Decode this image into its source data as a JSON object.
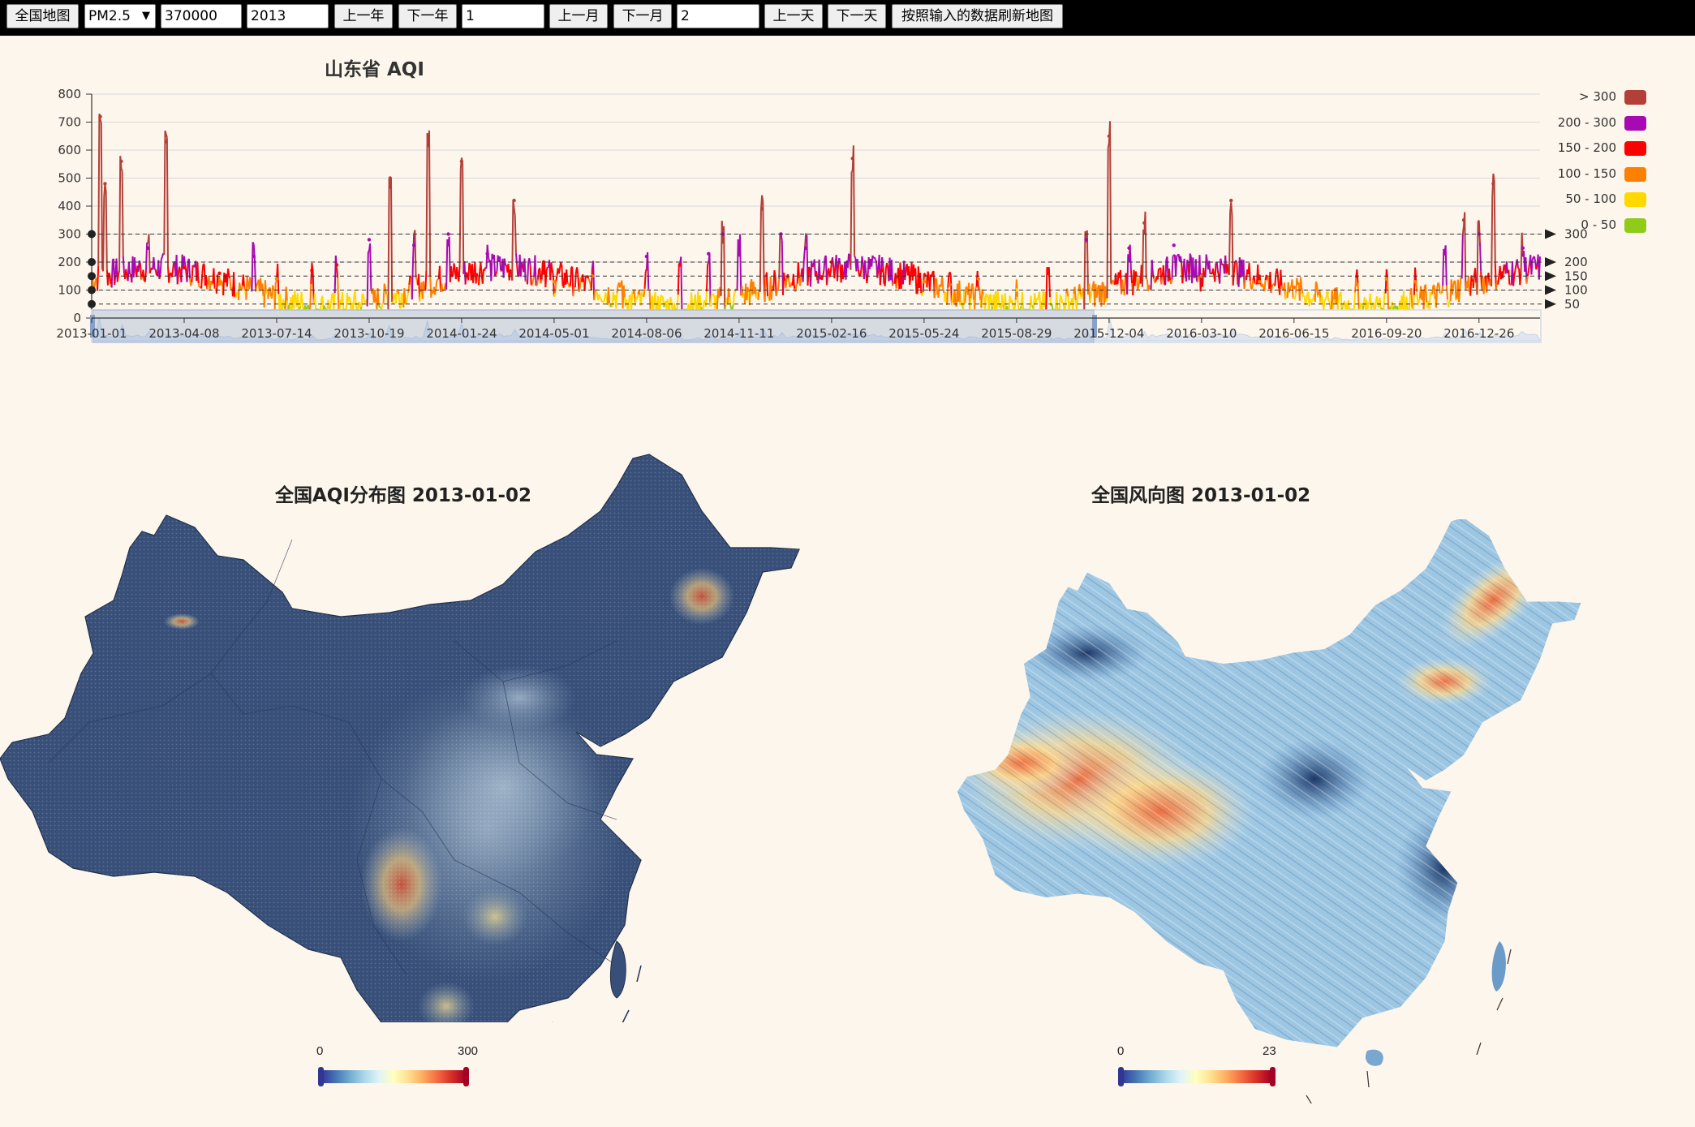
{
  "toolbar": {
    "national_map_label": "全国地图",
    "pollutant_select_value": "PM2.5",
    "region_code_value": "370000",
    "year_value": "2013",
    "prev_year_label": "上一年",
    "next_year_label": "下一年",
    "month_value": "1",
    "prev_month_label": "上一月",
    "next_month_label": "下一月",
    "day_value": "2",
    "prev_day_label": "上一天",
    "next_day_label": "下一天",
    "refresh_label": "按照输入的数据刷新地图"
  },
  "aqi_chart": {
    "title": "山东省 AQI",
    "colors": {
      "gt300": "#b34038",
      "r200_300": "#a70ab2",
      "r150_200": "#ff0000",
      "r100_150": "#ff8000",
      "r50_100": "#ffd800",
      "r0_50": "#8fcc1a"
    },
    "legend": [
      "> 300",
      "200 - 300",
      "150 - 200",
      "100 - 150",
      "50 - 100",
      "0 - 50"
    ],
    "mark_lines": [
      "300",
      "200",
      "150",
      "100",
      "50"
    ],
    "y_ticks": [
      "0",
      "100",
      "200",
      "300",
      "400",
      "500",
      "600",
      "700",
      "800"
    ],
    "x_ticks": [
      "2013-01-01",
      "2013-04-08",
      "2013-07-14",
      "2013-10-19",
      "2014-01-24",
      "2014-05-01",
      "2014-08-06",
      "2014-11-11",
      "2015-02-16",
      "2015-05-24",
      "2015-08-29",
      "2015-12-04",
      "2016-03-10",
      "2016-06-15",
      "2016-09-20",
      "2016-12-26"
    ]
  },
  "chart_data": {
    "type": "line",
    "title": "山东省 AQI",
    "xlabel": "",
    "ylabel": "",
    "ylim": [
      0,
      800
    ],
    "x_range": [
      "2013-01-01",
      "2017-02-28"
    ],
    "grid": true,
    "legend_position": "right",
    "series": [
      {
        "name": "AQI",
        "x": [
          "2013-01-10",
          "2013-01-15",
          "2013-02-01",
          "2013-03-01",
          "2013-03-20",
          "2013-04-08",
          "2013-05-15",
          "2013-06-20",
          "2013-07-14",
          "2013-08-20",
          "2013-09-15",
          "2013-10-19",
          "2013-11-10",
          "2013-12-05",
          "2013-12-20",
          "2014-01-10",
          "2014-01-24",
          "2014-02-20",
          "2014-03-20",
          "2014-04-20",
          "2014-05-01",
          "2014-06-10",
          "2014-07-10",
          "2014-08-06",
          "2014-09-10",
          "2014-10-10",
          "2014-10-25",
          "2014-11-11",
          "2014-12-05",
          "2014-12-25",
          "2015-01-20",
          "2015-02-16",
          "2015-03-10",
          "2015-04-10",
          "2015-05-24",
          "2015-06-20",
          "2015-07-20",
          "2015-08-29",
          "2015-10-01",
          "2015-11-10",
          "2015-12-04",
          "2015-12-25",
          "2016-01-10",
          "2016-02-10",
          "2016-03-10",
          "2016-04-10",
          "2016-05-10",
          "2016-06-15",
          "2016-07-20",
          "2016-08-20",
          "2016-09-20",
          "2016-10-20",
          "2016-11-20",
          "2016-12-10",
          "2016-12-26",
          "2017-01-10",
          "2017-02-10"
        ],
        "y": [
          720,
          480,
          560,
          250,
          630,
          180,
          160,
          220,
          140,
          170,
          190,
          280,
          500,
          260,
          650,
          300,
          560,
          230,
          420,
          200,
          130,
          150,
          120,
          220,
          190,
          230,
          300,
          260,
          390,
          300,
          250,
          200,
          570,
          170,
          130,
          120,
          140,
          100,
          160,
          280,
          650,
          250,
          340,
          260,
          150,
          420,
          130,
          110,
          90,
          120,
          140,
          130,
          230,
          350,
          300,
          480,
          250
        ]
      }
    ]
  },
  "aqi_map": {
    "title": "全国AQI分布图 2013-01-02",
    "scale_min": "0",
    "scale_max": "300"
  },
  "wind_map": {
    "title": "全国风向图 2013-01-02",
    "scale_min": "0",
    "scale_max": "23"
  }
}
